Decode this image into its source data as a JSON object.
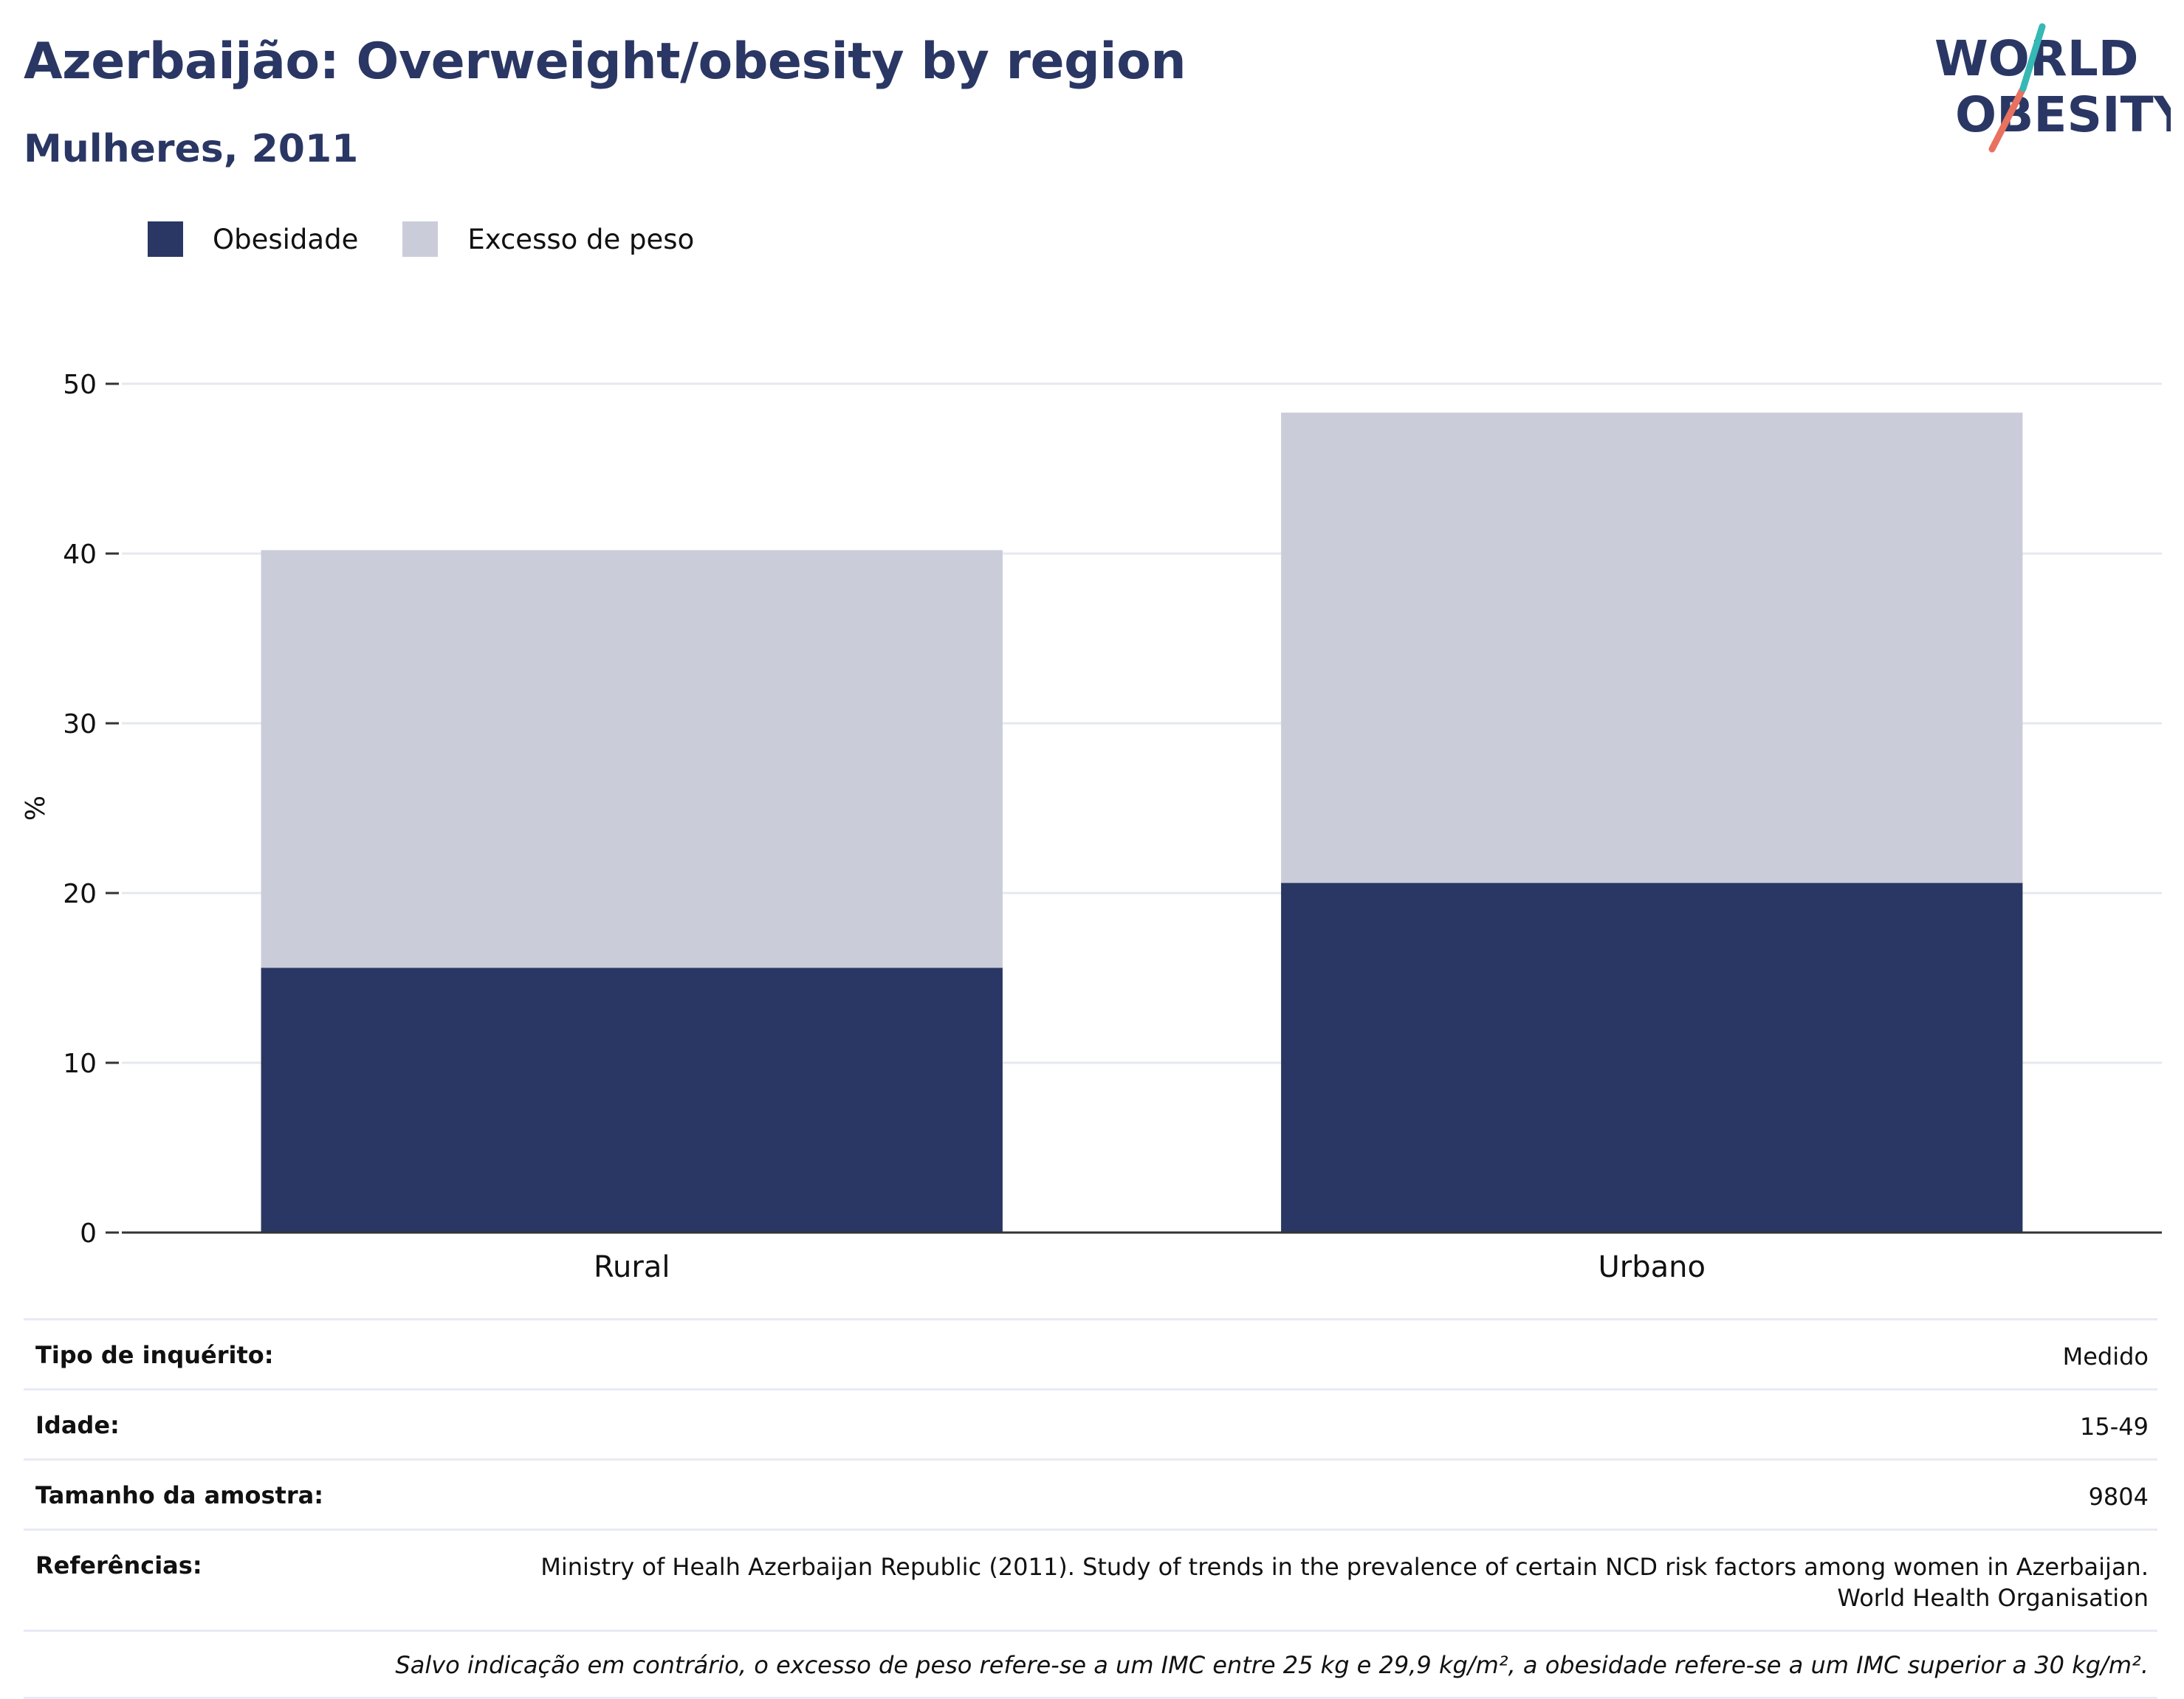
{
  "header": {
    "title": "Azerbaijão: Overweight/obesity by region",
    "subtitle": "Mulheres, 2011",
    "logo_text_line1": "WORLD",
    "logo_text_line2": "OBESITY"
  },
  "legend": {
    "items": [
      {
        "label": "Obesidade",
        "color": "#2a3764"
      },
      {
        "label": "Excesso de peso",
        "color": "#cacdd9"
      }
    ]
  },
  "chart_data": {
    "type": "bar",
    "stacked": true,
    "categories": [
      "Rural",
      "Urbano"
    ],
    "series": [
      {
        "name": "Obesidade",
        "values": [
          15.6,
          20.6
        ],
        "color": "#2a3764"
      },
      {
        "name": "Excesso de peso",
        "values": [
          24.6,
          27.7
        ],
        "color": "#cacdd9"
      }
    ],
    "ylabel": "%",
    "ylim": [
      0,
      50
    ],
    "yticks": [
      0,
      10,
      20,
      30,
      40,
      50
    ],
    "grid": true,
    "legend_position": "top-left"
  },
  "info": {
    "rows": [
      {
        "key": "Tipo de inquérito:",
        "value": "Medido"
      },
      {
        "key": "Idade:",
        "value": "15-49"
      },
      {
        "key": "Tamanho da amostra:",
        "value": "9804"
      },
      {
        "key": "Referências:",
        "value": "Ministry of Healh Azerbaijan Republic (2011). Study of trends in the prevalence of certain NCD risk factors among women in Azerbaijan.",
        "value2": "World Health Organisation"
      }
    ],
    "note": "Salvo indicação em contrário, o excesso de peso refere-se a um IMC entre 25 kg e 29,9 kg/m², a obesidade refere-se a um IMC superior a 30 kg/m²."
  }
}
